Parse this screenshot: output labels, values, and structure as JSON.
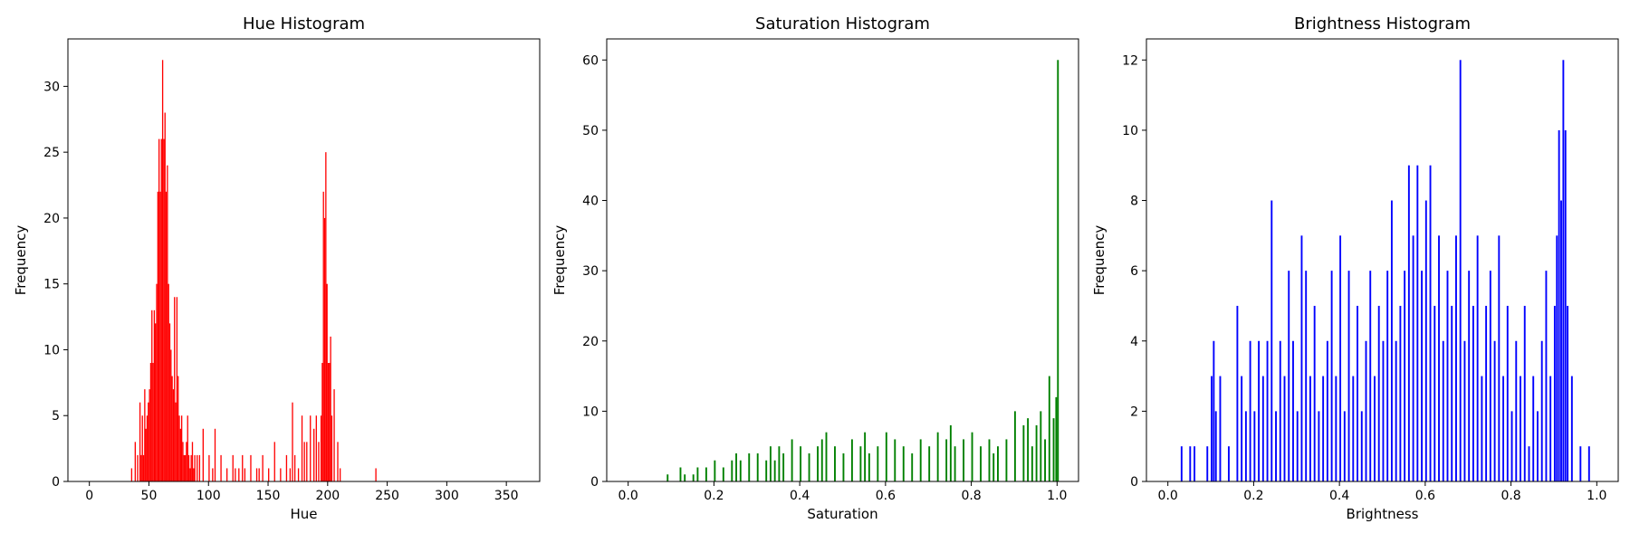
{
  "chart_data": [
    {
      "type": "bar",
      "title": "Hue Histogram",
      "xlabel": "Hue",
      "ylabel": "Frequency",
      "color": "#ff0000",
      "xlim": [
        -18,
        378
      ],
      "ylim": [
        0,
        33.6
      ],
      "xticks": [
        0,
        50,
        100,
        150,
        200,
        250,
        300,
        350
      ],
      "yticks": [
        0,
        5,
        10,
        15,
        20,
        25,
        30
      ],
      "xtick_labels": [
        "0",
        "50",
        "100",
        "150",
        "200",
        "250",
        "300",
        "350"
      ],
      "ytick_labels": [
        "0",
        "5",
        "10",
        "15",
        "20",
        "25",
        "30"
      ],
      "bin_width": 1,
      "x": [
        35,
        38,
        40,
        42,
        43,
        44,
        45,
        46,
        47,
        48,
        49,
        50,
        51,
        52,
        53,
        54,
        55,
        56,
        57,
        58,
        59,
        60,
        61,
        62,
        63,
        64,
        65,
        66,
        67,
        68,
        69,
        70,
        71,
        72,
        73,
        74,
        75,
        76,
        77,
        78,
        79,
        80,
        81,
        82,
        83,
        84,
        85,
        86,
        87,
        88,
        90,
        92,
        95,
        100,
        103,
        105,
        110,
        115,
        120,
        122,
        125,
        128,
        130,
        135,
        140,
        142,
        145,
        150,
        155,
        160,
        165,
        168,
        170,
        172,
        175,
        178,
        180,
        182,
        185,
        188,
        190,
        192,
        194,
        195,
        196,
        197,
        198,
        199,
        200,
        201,
        202,
        203,
        205,
        208,
        210,
        240
      ],
      "values": [
        1,
        3,
        2,
        6,
        2,
        5,
        2,
        7,
        4,
        5,
        6,
        7,
        9,
        13,
        9,
        13,
        12,
        15,
        22,
        26,
        22,
        26,
        32,
        26,
        28,
        22,
        24,
        15,
        12,
        10,
        8,
        7,
        14,
        6,
        14,
        8,
        5,
        4,
        5,
        3,
        2,
        2,
        3,
        5,
        2,
        1,
        2,
        3,
        1,
        2,
        2,
        2,
        4,
        2,
        1,
        4,
        2,
        1,
        2,
        1,
        1,
        2,
        1,
        2,
        1,
        1,
        2,
        1,
        3,
        1,
        2,
        1,
        6,
        2,
        1,
        5,
        3,
        3,
        5,
        4,
        5,
        3,
        5,
        9,
        22,
        20,
        25,
        15,
        9,
        9,
        11,
        5,
        7,
        3,
        1,
        1
      ]
    },
    {
      "type": "bar",
      "title": "Saturation Histogram",
      "xlabel": "Saturation",
      "ylabel": "Frequency",
      "color": "#008000",
      "xlim": [
        -0.05,
        1.05
      ],
      "ylim": [
        0,
        63
      ],
      "xticks": [
        0,
        0.2,
        0.4,
        0.6,
        0.8,
        1.0
      ],
      "yticks": [
        0,
        10,
        20,
        30,
        40,
        50,
        60
      ],
      "xtick_labels": [
        "0.0",
        "0.2",
        "0.4",
        "0.6",
        "0.8",
        "1.0"
      ],
      "ytick_labels": [
        "0",
        "10",
        "20",
        "30",
        "40",
        "50",
        "60"
      ],
      "bin_width": 0.004,
      "x": [
        0.09,
        0.12,
        0.13,
        0.15,
        0.16,
        0.18,
        0.2,
        0.22,
        0.24,
        0.25,
        0.26,
        0.28,
        0.3,
        0.32,
        0.33,
        0.34,
        0.35,
        0.36,
        0.38,
        0.4,
        0.42,
        0.44,
        0.45,
        0.46,
        0.48,
        0.5,
        0.52,
        0.54,
        0.55,
        0.56,
        0.58,
        0.6,
        0.62,
        0.64,
        0.66,
        0.68,
        0.7,
        0.72,
        0.74,
        0.75,
        0.76,
        0.78,
        0.8,
        0.82,
        0.84,
        0.85,
        0.86,
        0.88,
        0.9,
        0.92,
        0.93,
        0.94,
        0.95,
        0.96,
        0.97,
        0.98,
        0.99,
        0.996,
        1.0
      ],
      "values": [
        1,
        2,
        1,
        1,
        2,
        2,
        3,
        2,
        3,
        4,
        3,
        4,
        4,
        3,
        5,
        3,
        5,
        4,
        6,
        5,
        4,
        5,
        6,
        7,
        5,
        4,
        6,
        5,
        7,
        4,
        5,
        7,
        6,
        5,
        4,
        6,
        5,
        7,
        6,
        8,
        5,
        6,
        7,
        5,
        6,
        4,
        5,
        6,
        10,
        8,
        9,
        5,
        8,
        10,
        6,
        15,
        9,
        12,
        60
      ]
    },
    {
      "type": "bar",
      "title": "Brightness Histogram",
      "xlabel": "Brightness",
      "ylabel": "Frequency",
      "color": "#0000ff",
      "xlim": [
        -0.05,
        1.05
      ],
      "ylim": [
        0,
        12.6
      ],
      "xticks": [
        0,
        0.2,
        0.4,
        0.6,
        0.8,
        1.0
      ],
      "yticks": [
        0,
        2,
        4,
        6,
        8,
        10,
        12
      ],
      "xtick_labels": [
        "0.0",
        "0.2",
        "0.4",
        "0.6",
        "0.8",
        "1.0"
      ],
      "ytick_labels": [
        "0",
        "2",
        "4",
        "6",
        "8",
        "10",
        "12"
      ],
      "bin_width": 0.004,
      "x": [
        0.03,
        0.05,
        0.06,
        0.09,
        0.1,
        0.105,
        0.11,
        0.12,
        0.14,
        0.16,
        0.17,
        0.18,
        0.19,
        0.2,
        0.21,
        0.22,
        0.23,
        0.24,
        0.25,
        0.26,
        0.27,
        0.28,
        0.29,
        0.3,
        0.31,
        0.32,
        0.33,
        0.34,
        0.35,
        0.36,
        0.37,
        0.38,
        0.39,
        0.4,
        0.41,
        0.42,
        0.43,
        0.44,
        0.45,
        0.46,
        0.47,
        0.48,
        0.49,
        0.5,
        0.51,
        0.52,
        0.53,
        0.54,
        0.55,
        0.56,
        0.57,
        0.58,
        0.59,
        0.6,
        0.61,
        0.62,
        0.63,
        0.64,
        0.65,
        0.66,
        0.67,
        0.68,
        0.69,
        0.7,
        0.71,
        0.72,
        0.73,
        0.74,
        0.75,
        0.76,
        0.77,
        0.78,
        0.79,
        0.8,
        0.81,
        0.82,
        0.83,
        0.84,
        0.85,
        0.86,
        0.87,
        0.88,
        0.89,
        0.9,
        0.905,
        0.91,
        0.915,
        0.92,
        0.925,
        0.93,
        0.94,
        0.96,
        0.98
      ],
      "values": [
        1,
        1,
        1,
        1,
        3,
        4,
        2,
        3,
        1,
        5,
        3,
        2,
        4,
        2,
        4,
        3,
        4,
        8,
        2,
        4,
        3,
        6,
        4,
        2,
        7,
        6,
        3,
        5,
        2,
        3,
        4,
        6,
        3,
        7,
        2,
        6,
        3,
        5,
        2,
        4,
        6,
        3,
        5,
        4,
        6,
        8,
        4,
        5,
        6,
        9,
        7,
        9,
        6,
        8,
        9,
        5,
        7,
        4,
        6,
        5,
        7,
        12,
        4,
        6,
        5,
        7,
        3,
        5,
        6,
        4,
        7,
        3,
        5,
        2,
        4,
        3,
        5,
        1,
        3,
        2,
        4,
        6,
        3,
        5,
        7,
        10,
        8,
        12,
        10,
        5,
        3,
        1,
        1
      ]
    }
  ]
}
